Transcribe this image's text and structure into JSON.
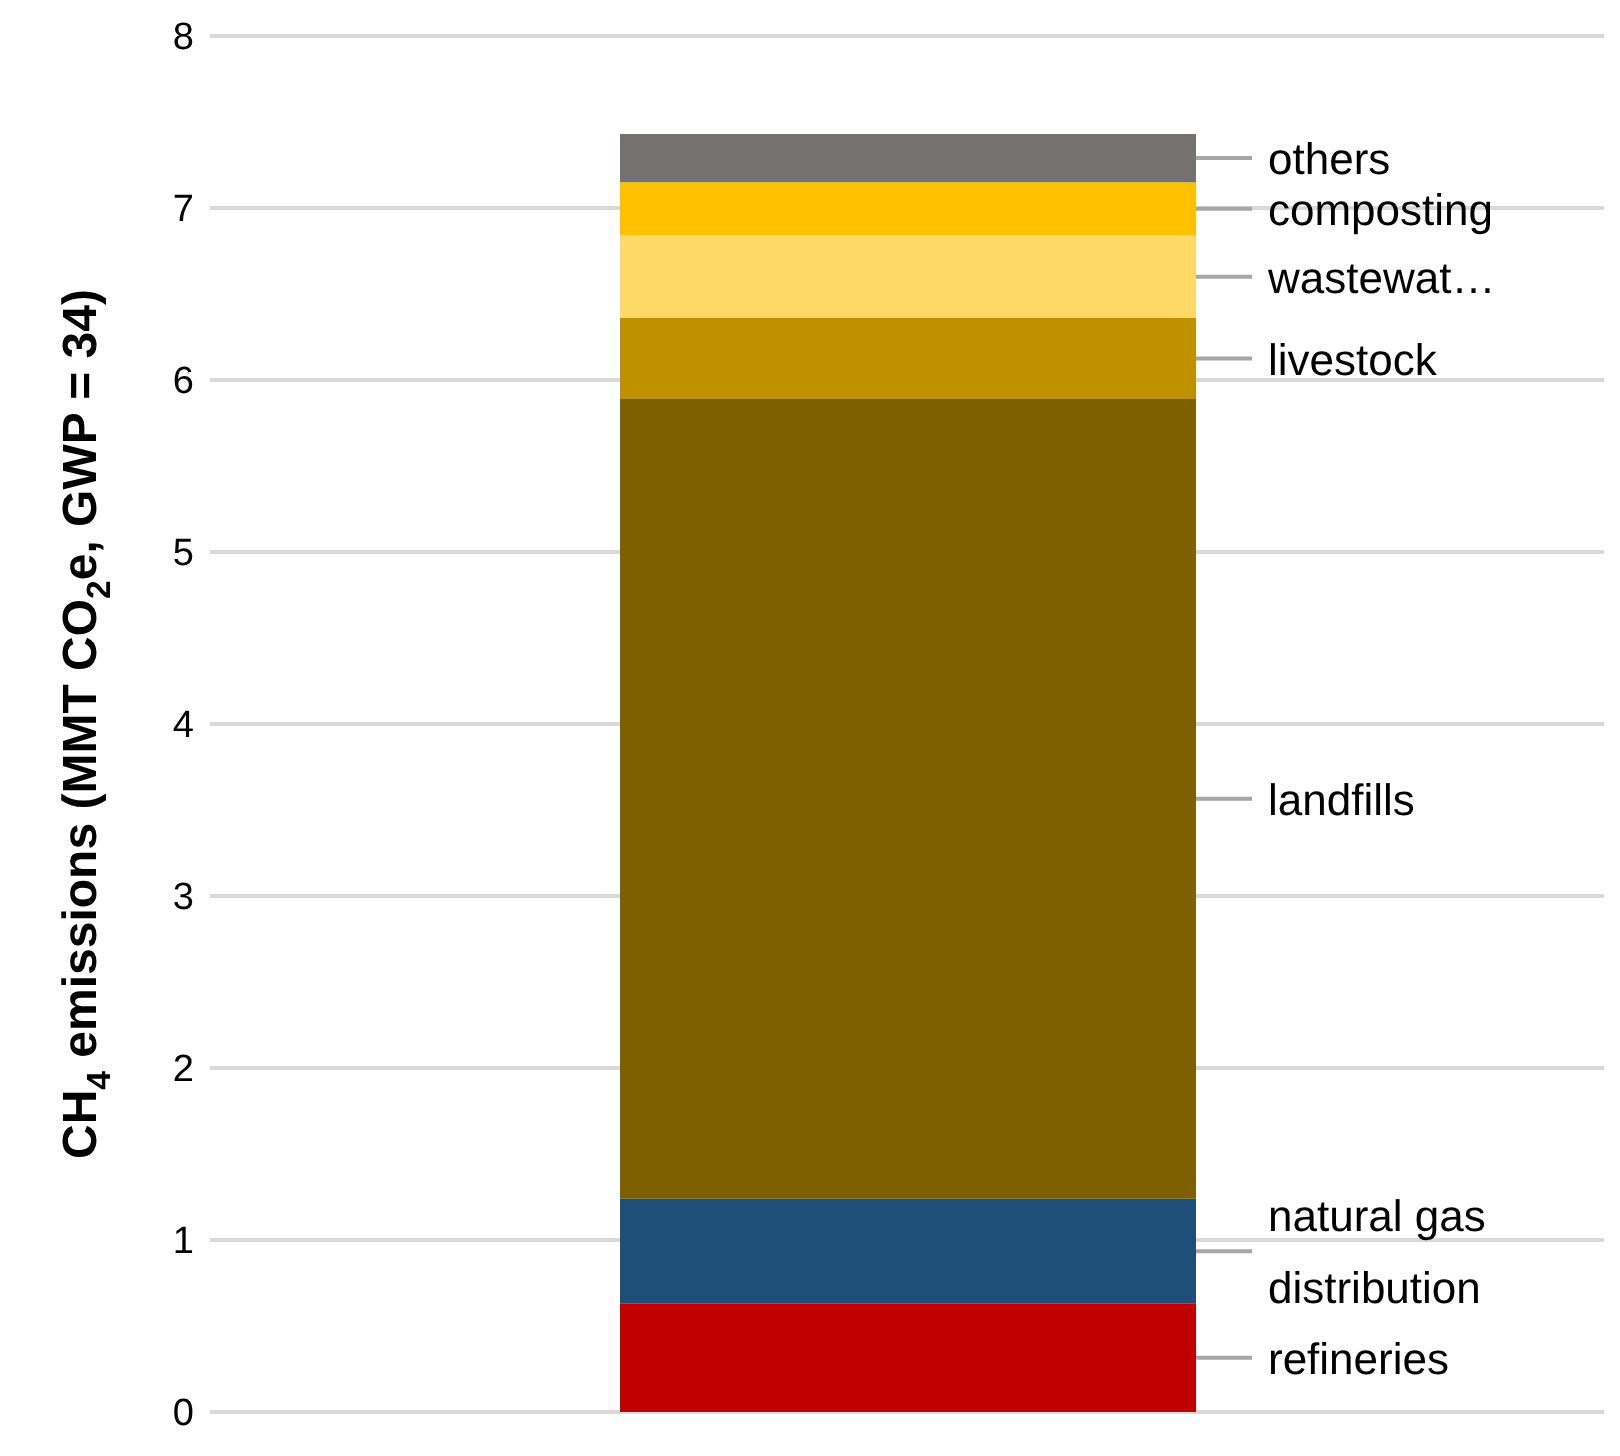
{
  "chart_data": {
    "type": "bar",
    "stacked": true,
    "ylabel": "CH$_{4}$ emissions (MMT CO$_{2}$e, GWP = 34)",
    "categories": [
      null
    ],
    "ylim": [
      0,
      8
    ],
    "yticks": [
      0,
      1,
      2,
      3,
      4,
      5,
      6,
      7,
      8
    ],
    "grid": "y",
    "legend": false,
    "series": [
      {
        "name": "refineries",
        "color": "#c00000",
        "values": [
          0.63
        ]
      },
      {
        "name": "natural gas distribution",
        "color": "#1f4e79",
        "values": [
          0.61
        ]
      },
      {
        "name": "landfills",
        "color": "#7f6000",
        "values": [
          4.65
        ]
      },
      {
        "name": "livestock",
        "color": "#bf9000",
        "values": [
          0.47
        ]
      },
      {
        "name": "wastewat…",
        "color": "#ffd966",
        "values": [
          0.48
        ]
      },
      {
        "name": "composting",
        "color": "#ffc000",
        "values": [
          0.31
        ]
      },
      {
        "name": "others",
        "color": "#767171",
        "values": [
          0.28
        ]
      }
    ]
  }
}
